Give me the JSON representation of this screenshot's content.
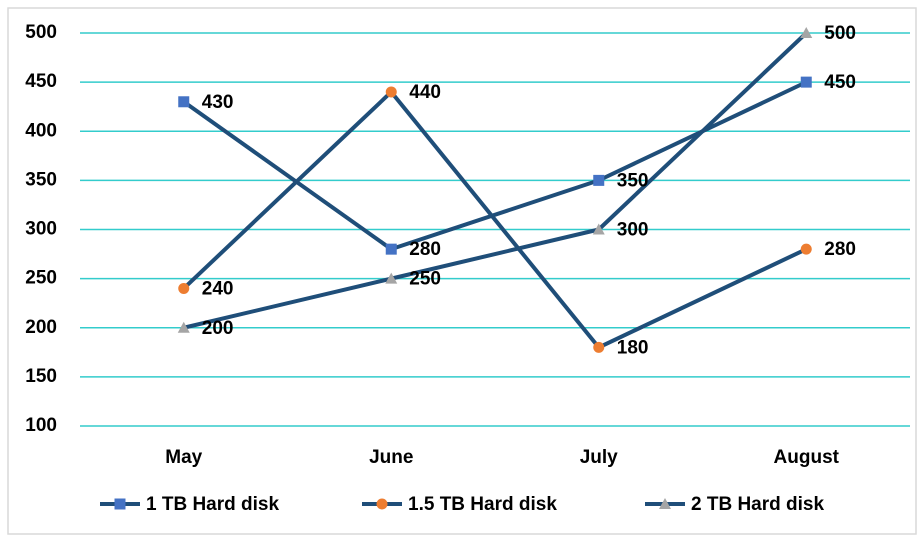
{
  "chart_data": {
    "type": "line",
    "categories": [
      "May",
      "June",
      "July",
      "August"
    ],
    "series": [
      {
        "name": "1 TB Hard disk",
        "color": "#4472c4",
        "marker": "square",
        "values": [
          430,
          280,
          350,
          450
        ]
      },
      {
        "name": "1.5 TB Hard disk",
        "color": "#ed7d31",
        "marker": "circle",
        "values": [
          240,
          440,
          180,
          280
        ]
      },
      {
        "name": "2 TB Hard disk",
        "color": "#a5a5a5",
        "marker": "triangle",
        "values": [
          200,
          250,
          300,
          500
        ]
      }
    ],
    "line_color": "#1f4e79",
    "ylim": [
      100,
      500
    ],
    "yticks": [
      100,
      150,
      200,
      250,
      300,
      350,
      400,
      450,
      500
    ],
    "grid": true,
    "grid_color": "#33cccc",
    "legend": "bottom"
  }
}
